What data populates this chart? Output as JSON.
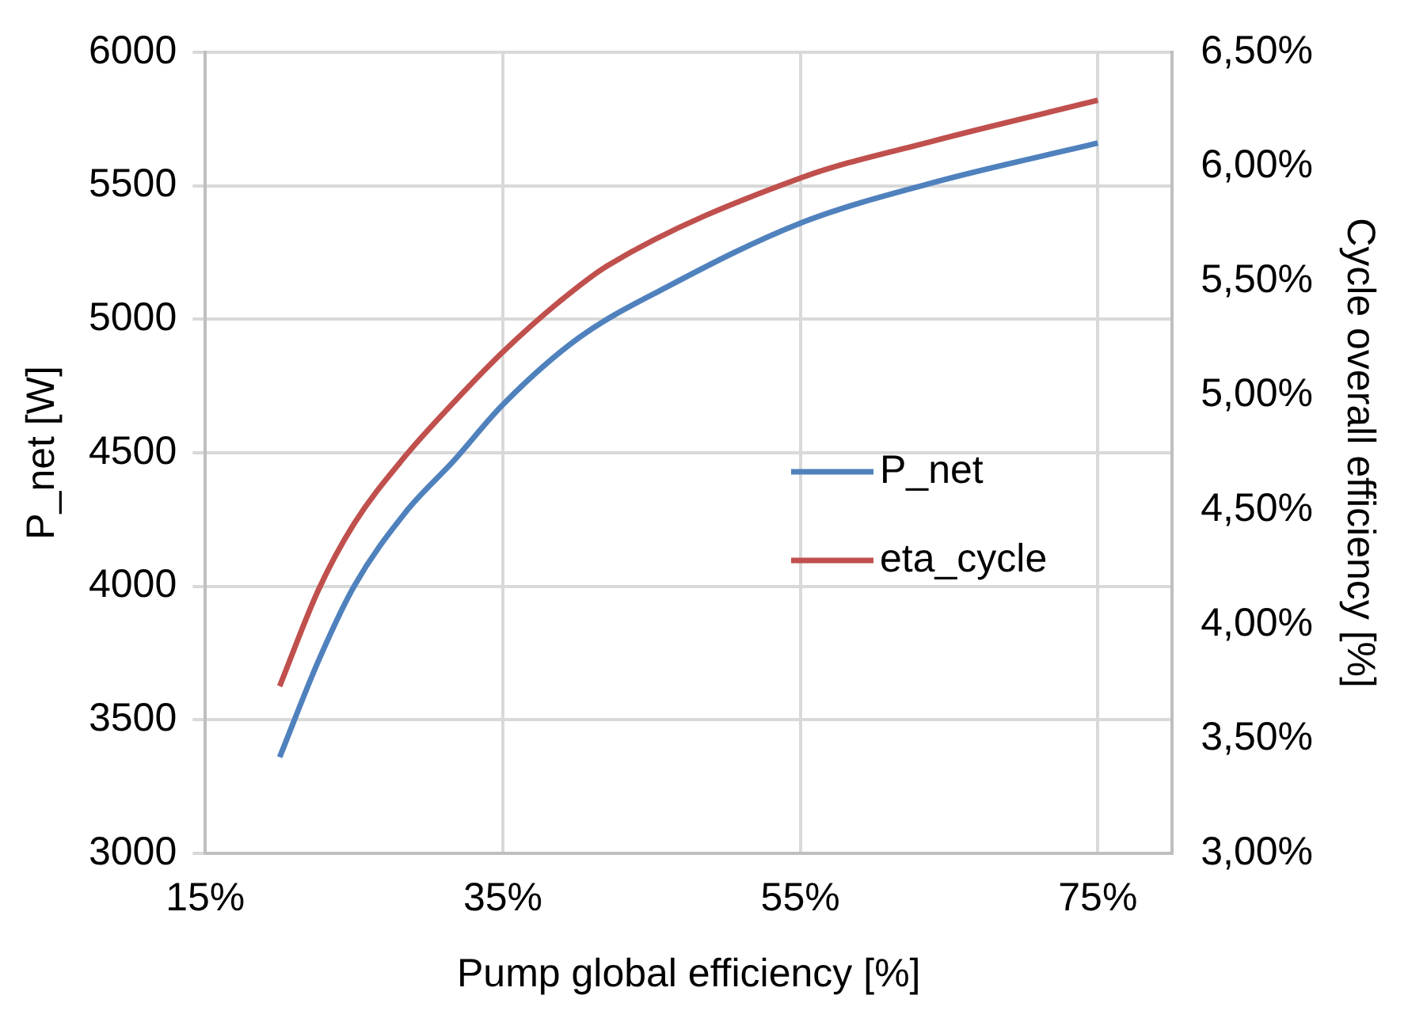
{
  "chart_data": {
    "type": "line",
    "xlabel": "Pump global efficiency [%]",
    "ylabel": "P_net [W]",
    "y2label": "Cycle overall efficiency [%]",
    "xlim": [
      15,
      80
    ],
    "xticks": [
      {
        "value": 15,
        "label": "15%"
      },
      {
        "value": 35,
        "label": "35%"
      },
      {
        "value": 55,
        "label": "55%"
      },
      {
        "value": 75,
        "label": "75%"
      }
    ],
    "ylim": [
      3000,
      6000
    ],
    "yticks": [
      3000,
      3500,
      4000,
      4500,
      5000,
      5500,
      6000
    ],
    "y2lim": [
      3,
      6.5
    ],
    "y2ticks": [
      {
        "value": 3,
        "label": "3,00%"
      },
      {
        "value": 3.5,
        "label": "3,50%"
      },
      {
        "value": 4,
        "label": "4,00%"
      },
      {
        "value": 4.5,
        "label": "4,50%"
      },
      {
        "value": 5,
        "label": "5,00%"
      },
      {
        "value": 5.5,
        "label": "5,50%"
      },
      {
        "value": 6,
        "label": "6,00%"
      },
      {
        "value": 6.5,
        "label": "6,50%"
      }
    ],
    "series": [
      {
        "name": "P_net",
        "color": "#4f81bd",
        "x": [
          20,
          22.6,
          25,
          28.5,
          31.7,
          35,
          40.1,
          46,
          55,
          63.8,
          75
        ],
        "values": [
          3360,
          3720,
          4000,
          4280,
          4470,
          4680,
          4930,
          5120,
          5360,
          5510,
          5660
        ]
      },
      {
        "name": "eta_cycle",
        "color": "#c0504d",
        "axis": "y2",
        "x": [
          20,
          22.6,
          25,
          28.5,
          31.7,
          35,
          38.8,
          42.1,
          55,
          63.8,
          75
        ],
        "values": [
          3.73,
          4.15,
          4.44,
          4.74,
          4.97,
          5.19,
          5.41,
          5.57,
          5.95,
          6.11,
          6.29
        ]
      }
    ],
    "grid": true,
    "legend": "right",
    "marker": "none",
    "line_style": "solid"
  }
}
